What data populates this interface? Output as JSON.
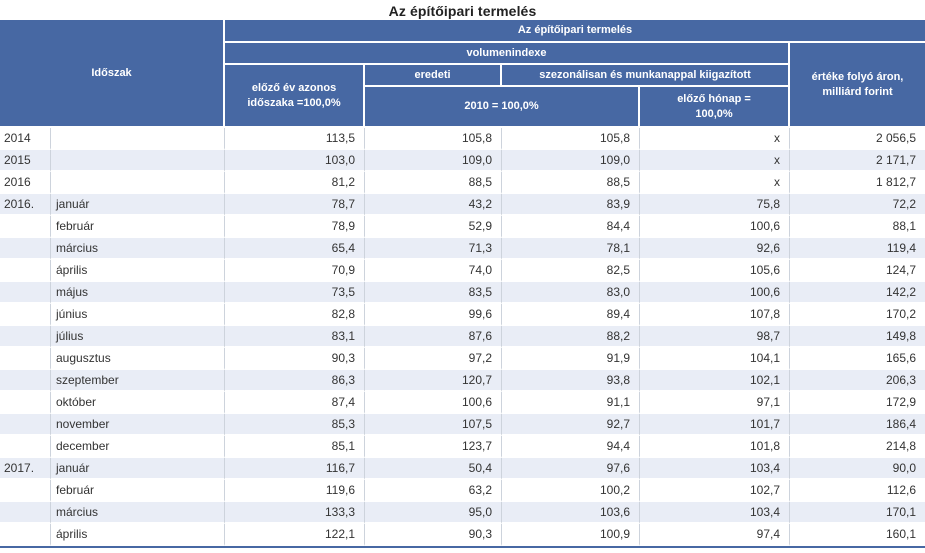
{
  "title": "Az építőipari termelés",
  "colors": {
    "header_bg": "#4768a3",
    "header_text": "#ffffff",
    "alt_row_bg": "#e9edf6",
    "grid_border": "#cdd3dc",
    "bottom_border": "#4768a3",
    "body_text": "#333333"
  },
  "chart_data": {
    "type": "table",
    "title": "Az építőipari termelés",
    "header": {
      "idoszak": "Időszak",
      "top": "Az építőipari termelés",
      "volumenindexe": "volumenindexe",
      "elozo_ev": "előző év azonos időszaka =100,0%",
      "eredeti": "eredeti",
      "szezonalis": "szezonálisan és munkanappal kiigazított",
      "base2010": "2010 = 100,0%",
      "elozo_honap": "előző hónap = 100,0%",
      "ertek": "értéke folyó áron, milliárd forint"
    },
    "rows": [
      [
        "2014",
        "",
        "113,5",
        "105,8",
        "105,8",
        "x",
        "2 056,5"
      ],
      [
        "2015",
        "",
        "103,0",
        "109,0",
        "109,0",
        "x",
        "2 171,7"
      ],
      [
        "2016",
        "",
        "81,2",
        "88,5",
        "88,5",
        "x",
        "1 812,7"
      ],
      [
        "2016.",
        "január",
        "78,7",
        "43,2",
        "83,9",
        "75,8",
        "72,2"
      ],
      [
        "",
        "február",
        "78,9",
        "52,9",
        "84,4",
        "100,6",
        "88,1"
      ],
      [
        "",
        "március",
        "65,4",
        "71,3",
        "78,1",
        "92,6",
        "119,4"
      ],
      [
        "",
        "április",
        "70,9",
        "74,0",
        "82,5",
        "105,6",
        "124,7"
      ],
      [
        "",
        "május",
        "73,5",
        "83,5",
        "83,0",
        "100,6",
        "142,2"
      ],
      [
        "",
        "június",
        "82,8",
        "99,6",
        "89,4",
        "107,8",
        "170,2"
      ],
      [
        "",
        "július",
        "83,1",
        "87,6",
        "88,2",
        "98,7",
        "149,8"
      ],
      [
        "",
        "augusztus",
        "90,3",
        "97,2",
        "91,9",
        "104,1",
        "165,6"
      ],
      [
        "",
        "szeptember",
        "86,3",
        "120,7",
        "93,8",
        "102,1",
        "206,3"
      ],
      [
        "",
        "október",
        "87,4",
        "100,6",
        "91,1",
        "97,1",
        "172,9"
      ],
      [
        "",
        "november",
        "85,3",
        "107,5",
        "92,7",
        "101,7",
        "186,4"
      ],
      [
        "",
        "december",
        "85,1",
        "123,7",
        "94,4",
        "101,8",
        "214,8"
      ],
      [
        "2017.",
        "január",
        "116,7",
        "50,4",
        "97,6",
        "103,4",
        "90,0"
      ],
      [
        "",
        "február",
        "119,6",
        "63,2",
        "100,2",
        "102,7",
        "112,6"
      ],
      [
        "",
        "március",
        "133,3",
        "95,0",
        "103,6",
        "103,4",
        "170,1"
      ],
      [
        "",
        "április",
        "122,1",
        "90,3",
        "100,9",
        "97,4",
        "160,1"
      ]
    ]
  }
}
